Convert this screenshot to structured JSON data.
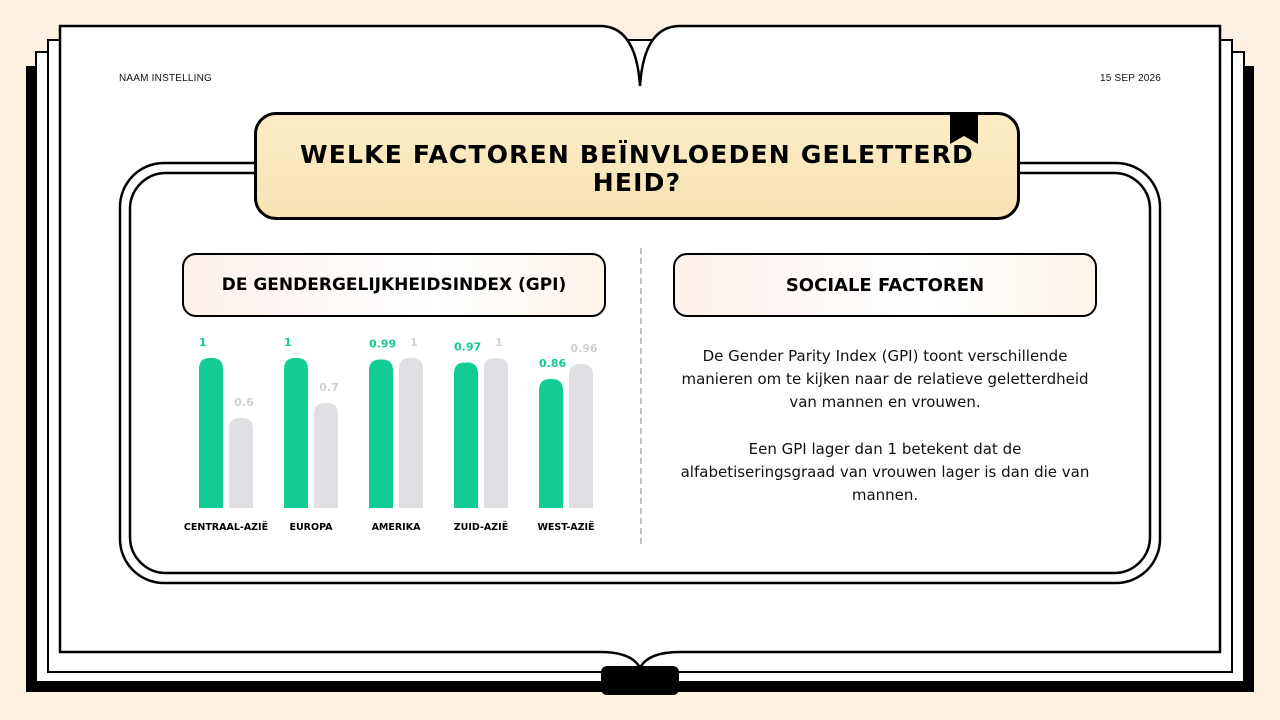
{
  "header": {
    "institution": "NAAM INSTELLING",
    "date": "15 SEP 2026"
  },
  "title": "WELKE FACTOREN BEÏNVLOEDEN GELETTERDHEID?",
  "left_panel": {
    "heading": "DE GENDERGELIJKHEIDSINDEX (GPI)"
  },
  "right_panel": {
    "heading": "SOCIALE FACTOREN",
    "paragraph1": "De Gender Parity Index (GPI) toont verschillende manieren om te kijken naar de relatieve geletterdheid van mannen en vrouwen.",
    "paragraph2": "Een GPI lager dan 1 betekent dat de alfabetiseringsgraad van vrouwen lager is dan die van mannen."
  },
  "colors": {
    "accent_green": "#12cc93",
    "secondary_gray": "#e0e0e4",
    "value_gray": "#cfcfd4"
  },
  "chart_data": {
    "type": "bar",
    "categories": [
      "CENTRAAL-AZIË",
      "EUROPA",
      "AMERIKA",
      "ZUID-AZIË",
      "WEST-AZIË"
    ],
    "series": [
      {
        "values": [
          1,
          1,
          0.99,
          0.97,
          0.86
        ]
      },
      {
        "values": [
          0.6,
          0.7,
          1,
          1,
          0.96
        ]
      }
    ],
    "value_labels": [
      [
        "1",
        "1",
        "0.99",
        "0.97",
        "0.86"
      ],
      [
        "0.6",
        "0.7",
        "1",
        "1",
        "0.96"
      ]
    ],
    "ylim": [
      0,
      1
    ],
    "grid": false,
    "legend": "none"
  }
}
